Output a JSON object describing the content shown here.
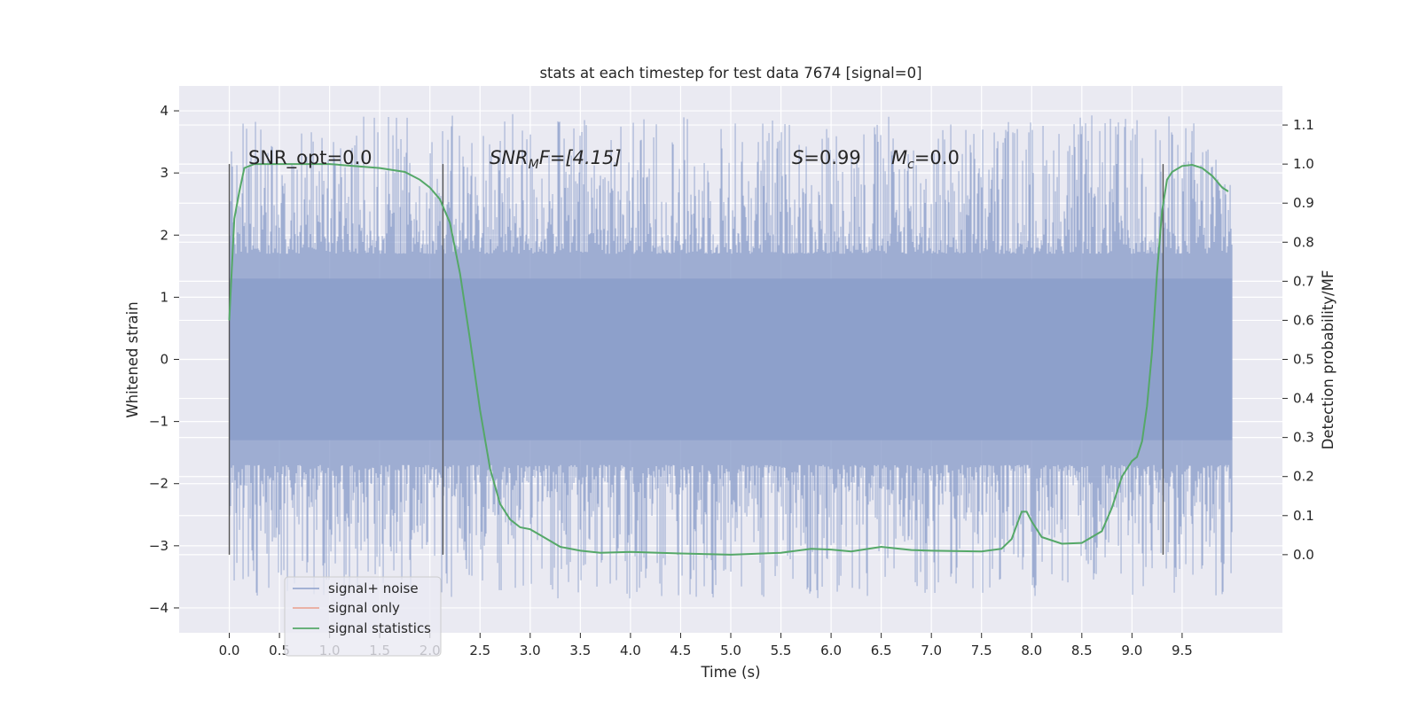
{
  "chart_data": {
    "type": "line",
    "title": "stats at each timestep for test data 7674 [signal=0]",
    "xlabel": "Time (s)",
    "ylabel": "Whitened strain",
    "ylabel_right": "Detection probability/MF",
    "xlim": [
      -0.5,
      10.5
    ],
    "ylim": [
      -4.4,
      4.4
    ],
    "ylim_right": [
      -0.2,
      1.2
    ],
    "x_ticks": [
      "0.0",
      "0.5",
      "1.0",
      "1.5",
      "2.0",
      "2.5",
      "3.0",
      "3.5",
      "4.0",
      "4.5",
      "5.0",
      "5.5",
      "6.0",
      "6.5",
      "7.0",
      "7.5",
      "8.0",
      "8.5",
      "9.0",
      "9.5"
    ],
    "y_ticks": [
      "4",
      "3",
      "2",
      "1",
      "0",
      "−1",
      "−2",
      "−3",
      "−4"
    ],
    "y_ticks_right": [
      "1.1",
      "1.0",
      "0.9",
      "0.8",
      "0.7",
      "0.6",
      "0.5",
      "0.4",
      "0.3",
      "0.2",
      "0.1",
      "0.0"
    ],
    "grid": true,
    "background": "#eaeaf2",
    "annotations": {
      "snr_opt": "SNR_opt=0.0",
      "snr_mf_base": "SNR",
      "snr_mf_sub": "M",
      "snr_mf_rest": "F=[4.15]",
      "s_var": "S",
      "s_rest": "=0.99",
      "mc_var": "M",
      "mc_sub": "c",
      "mc_rest": "=0.0"
    },
    "vertical_markers_s": [
      0.0,
      2.13,
      9.31
    ],
    "noise_envelope": {
      "t_start": 0.0,
      "t_end": 10.0,
      "core_amplitude": 1.3,
      "typical_peak": 2.5,
      "extreme_max": 4.05,
      "extreme_min": -3.95
    },
    "series": [
      {
        "name": "signal+ noise",
        "color": "#8da0cb",
        "axis": "left",
        "kind": "noise"
      },
      {
        "name": "signal only",
        "color": "#e9a08c",
        "axis": "left",
        "kind": "empty"
      },
      {
        "name": "signal statistics",
        "color": "#55a868",
        "axis": "right",
        "x": [
          0.0,
          0.05,
          0.1,
          0.15,
          0.25,
          0.5,
          1.0,
          1.5,
          1.75,
          1.9,
          2.0,
          2.1,
          2.2,
          2.3,
          2.4,
          2.5,
          2.6,
          2.7,
          2.8,
          2.9,
          3.0,
          3.1,
          3.2,
          3.3,
          3.5,
          3.7,
          4.0,
          4.5,
          5.0,
          5.5,
          5.8,
          6.0,
          6.2,
          6.5,
          6.8,
          7.0,
          7.5,
          7.7,
          7.8,
          7.85,
          7.9,
          7.95,
          8.0,
          8.1,
          8.3,
          8.5,
          8.7,
          8.8,
          8.9,
          9.0,
          9.05,
          9.1,
          9.15,
          9.2,
          9.25,
          9.3,
          9.35,
          9.4,
          9.5,
          9.6,
          9.7,
          9.8,
          9.9,
          9.96
        ],
        "y": [
          0.6,
          0.86,
          0.93,
          0.99,
          1.0,
          1.0,
          1.0,
          0.99,
          0.98,
          0.96,
          0.94,
          0.91,
          0.85,
          0.72,
          0.55,
          0.37,
          0.22,
          0.13,
          0.09,
          0.07,
          0.065,
          0.05,
          0.035,
          0.02,
          0.01,
          0.005,
          0.007,
          0.003,
          0.0,
          0.005,
          0.015,
          0.013,
          0.008,
          0.02,
          0.012,
          0.01,
          0.008,
          0.015,
          0.04,
          0.075,
          0.11,
          0.11,
          0.085,
          0.045,
          0.028,
          0.03,
          0.06,
          0.12,
          0.2,
          0.24,
          0.25,
          0.29,
          0.38,
          0.52,
          0.72,
          0.88,
          0.96,
          0.98,
          0.995,
          0.998,
          0.99,
          0.97,
          0.94,
          0.93
        ]
      }
    ],
    "legend": {
      "position": "lower-left",
      "entries": [
        "signal+ noise",
        "signal only",
        "signal statistics"
      ]
    }
  }
}
